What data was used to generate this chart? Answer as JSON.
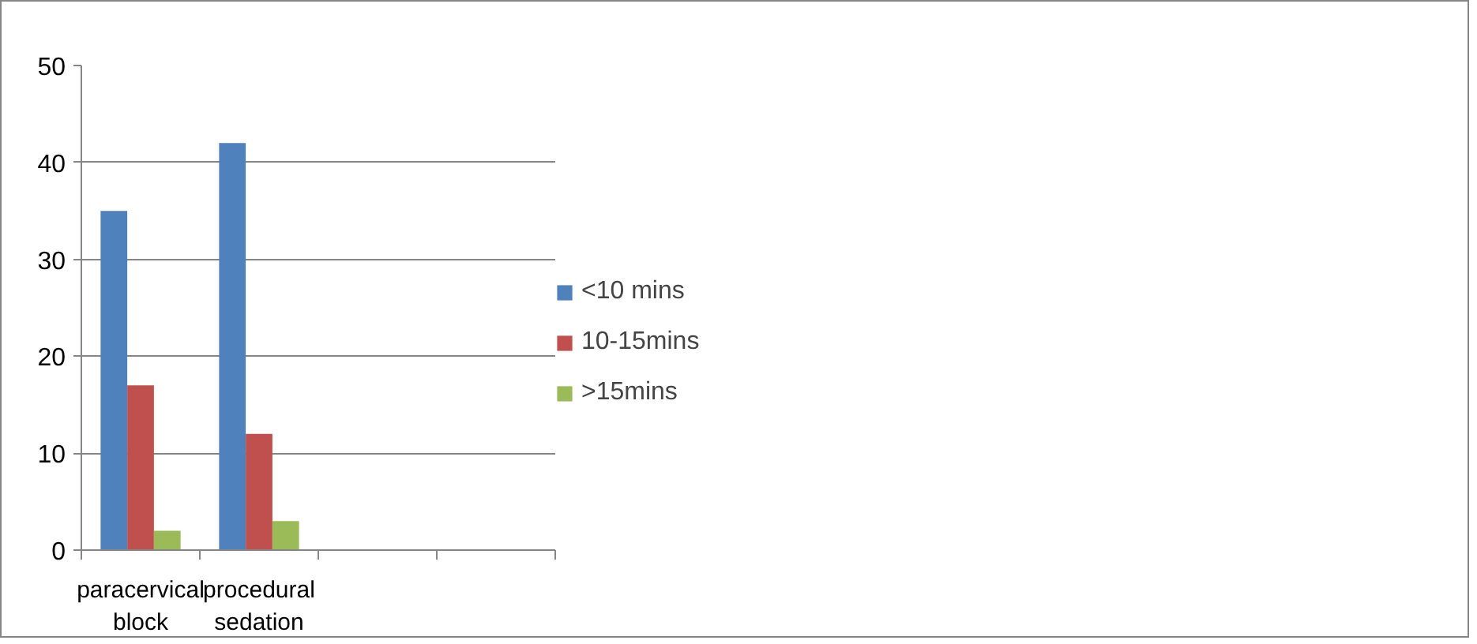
{
  "chart_data": {
    "type": "bar",
    "categories": [
      "paracervical block",
      "procedural sedation",
      null,
      null
    ],
    "series": [
      {
        "name": "<10 mins",
        "color": "#4f81bd",
        "values": [
          35,
          42,
          null,
          null
        ]
      },
      {
        "name": "10-15mins",
        "color": "#c0504d",
        "values": [
          17,
          12,
          null,
          null
        ]
      },
      {
        "name": ">15mins",
        "color": "#9bbb59",
        "values": [
          2,
          3,
          null,
          null
        ]
      }
    ],
    "ylim": [
      0,
      50
    ],
    "yticks": [
      0,
      10,
      20,
      30,
      40,
      50
    ],
    "grid": "y",
    "legend": "right"
  }
}
